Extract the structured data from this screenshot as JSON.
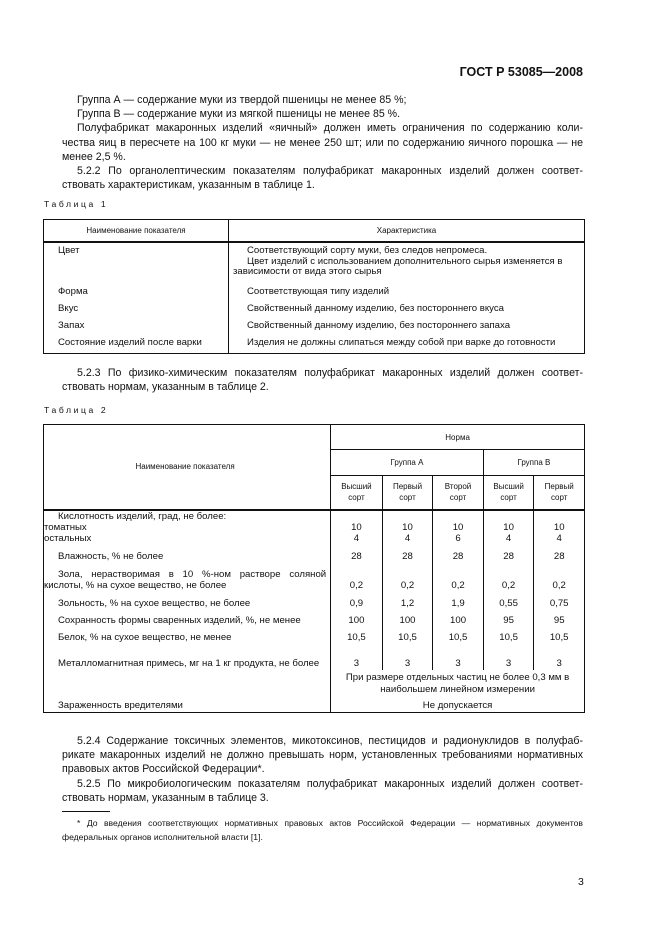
{
  "header": {
    "doc_id": "ГОСТ Р 53085—2008"
  },
  "para1": [
    "Группа А — содержание муки из твердой пшеницы не менее 85 %;",
    "Группа В — содержание муки из мягкой пшеницы не менее 85 %.",
    "Полуфабрикат макаронных изделий «яичный» должен иметь ограничения по содержанию коли-",
    "чества яиц в пересчете на 100 кг муки — не менее 250 шт; или по содержанию яичного порошка — не",
    "менее 2,5 %.",
    "5.2.2 По органолептическим показателям полуфабрикат макаронных изделий должен соответ-",
    "ствовать характеристикам, указанным в таблице 1."
  ],
  "table1": {
    "caption": "Таблица 1",
    "headers": [
      "Наименование показателя",
      "Характеристика"
    ],
    "rows": [
      {
        "name": "Цвет",
        "value": [
          "Соответствующий сорту муки, без следов непромеса.",
          "Цвет изделий с использованием дополнительного сырья изменяется в зависимости от вида этого сырья"
        ]
      },
      {
        "name": "Форма",
        "value": [
          "Соответствующая типу изделий"
        ]
      },
      {
        "name": "Вкус",
        "value": [
          "Свойственный данному изделию, без постороннего вкуса"
        ]
      },
      {
        "name": "Запах",
        "value": [
          "Свойственный данному изделию, без постороннего запаха"
        ]
      },
      {
        "name": "Состояние изделий после варки",
        "value": [
          "Изделия не должны слипаться между собой при варке до готовности"
        ]
      }
    ]
  },
  "para2": [
    "5.2.3 По физико-химическим показателям полуфабрикат макаронных изделий должен соответ-",
    "ствовать нормам, указанным в таблице 2."
  ],
  "table2": {
    "caption": "Таблица 2",
    "name_header": "Наименование показателя",
    "norm_header": "Норма",
    "groups": [
      "Группа А",
      "Группа В"
    ],
    "grades": [
      "Высший\nсорт",
      "Первый\nсорт",
      "Второй\nсорт",
      "Высший\nсорт",
      "Первый\nсорт"
    ],
    "rows": [
      {
        "name": "Кислотность изделий, град, не более:\nтоматных\nостальных",
        "values": [
          "10\n4",
          "10\n4",
          "10\n6",
          "10\n4",
          "10\n4"
        ]
      },
      {
        "name": "Влажность, % не более",
        "values": [
          "28",
          "28",
          "28",
          "28",
          "28"
        ]
      },
      {
        "name": "Зола, нерастворимая в 10 %-ном растворе соляной кислоты, % на сухое вещество, не более",
        "values": [
          "0,2",
          "0,2",
          "0,2",
          "0,2",
          "0,2"
        ]
      },
      {
        "name": "Зольность, % на сухое вещество, не более",
        "values": [
          "0,9",
          "1,2",
          "1,9",
          "0,55",
          "0,75"
        ]
      },
      {
        "name": "Сохранность формы сваренных изделий, %, не менее",
        "values": [
          "100",
          "100",
          "100",
          "95",
          "95"
        ]
      },
      {
        "name": "Белок, % на сухое вещество, не менее",
        "values": [
          "10,5",
          "10,5",
          "10,5",
          "10,5",
          "10,5"
        ]
      },
      {
        "name": "Металломагнитная примесь, мг на 1 кг продукта, не более",
        "values": [
          "3",
          "3",
          "3",
          "3",
          "3"
        ]
      }
    ],
    "metal_note": "При размере отдельных частиц не более 0,3 мм в наибольшем линейном измерении",
    "pests": {
      "name": "Зараженность вредителями",
      "value": "Не допускается"
    }
  },
  "para3": [
    "5.2.4 Содержание токсичных элементов, микотоксинов, пестицидов и радионуклидов в полуфаб-",
    "рикате макаронных изделий не должно превышать норм, установленных требованиями нормативных",
    "правовых актов Российской Федерации*.",
    "5.2.5 По микробиологическим показателям полуфабрикат макаронных изделий должен соответ-",
    "ствовать нормам, указанным в таблице 3."
  ],
  "footnote": "* До введения соответствующих нормативных правовых актов Российской Федерации — нормативных документов федеральных органов исполнительной власти [1].",
  "page_number": "3"
}
